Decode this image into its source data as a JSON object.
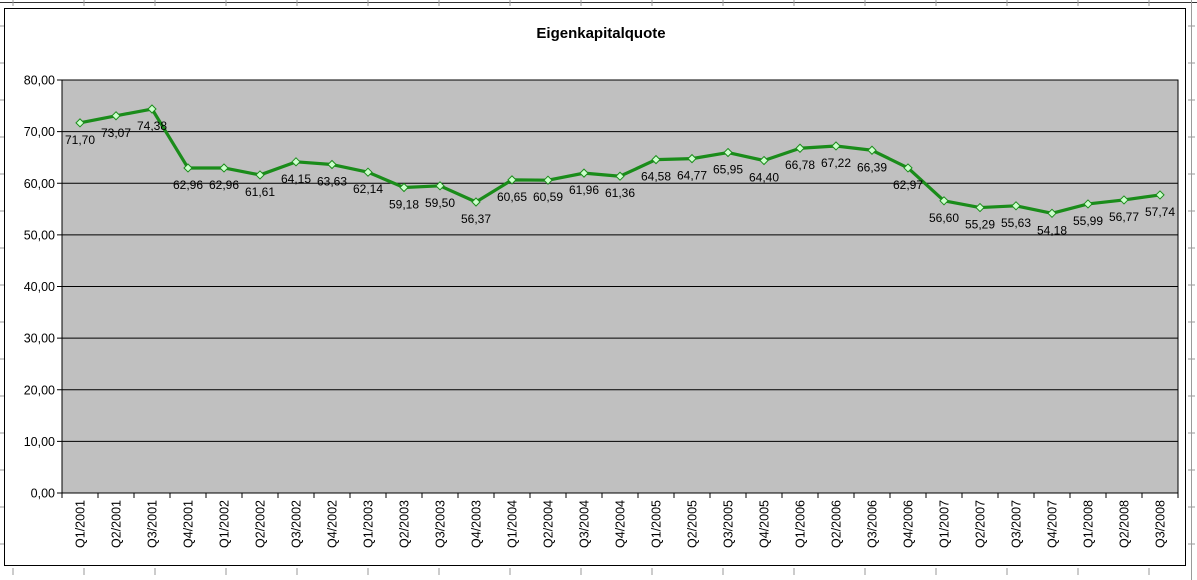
{
  "chart_data": {
    "type": "line",
    "title": "Eigenkapitalquote",
    "categories": [
      "Q1/2001",
      "Q2/2001",
      "Q3/2001",
      "Q4/2001",
      "Q1/2002",
      "Q2/2002",
      "Q3/2002",
      "Q4/2002",
      "Q1/2003",
      "Q2/2003",
      "Q3/2003",
      "Q4/2003",
      "Q1/2004",
      "Q2/2004",
      "Q3/2004",
      "Q4/2004",
      "Q1/2005",
      "Q2/2005",
      "Q3/2005",
      "Q4/2005",
      "Q1/2006",
      "Q2/2006",
      "Q3/2006",
      "Q4/2006",
      "Q1/2007",
      "Q2/2007",
      "Q3/2007",
      "Q4/2007",
      "Q1/2008",
      "Q2/2008",
      "Q3/2008"
    ],
    "values": [
      71.7,
      73.07,
      74.38,
      62.96,
      62.96,
      61.61,
      64.15,
      63.63,
      62.14,
      59.18,
      59.5,
      56.37,
      60.65,
      60.59,
      61.96,
      61.36,
      64.58,
      64.77,
      65.95,
      64.4,
      66.78,
      67.22,
      66.39,
      62.97,
      56.6,
      55.29,
      55.63,
      54.18,
      55.99,
      56.77,
      57.74
    ],
    "data_labels": [
      "71,70",
      "73,07",
      "74,38",
      "62,96",
      "62,96",
      "61,61",
      "64,15",
      "63,63",
      "62,14",
      "59,18",
      "59,50",
      "56,37",
      "60,65",
      "60,59",
      "61,96",
      "61,36",
      "64,58",
      "64,77",
      "65,95",
      "64,40",
      "66,78",
      "67,22",
      "66,39",
      "62,97",
      "56,60",
      "55,29",
      "55,63",
      "54,18",
      "55,99",
      "56,77",
      "57,74"
    ],
    "y_tick_labels": [
      "0,00",
      "10,00",
      "20,00",
      "30,00",
      "40,00",
      "50,00",
      "60,00",
      "70,00",
      "80,00"
    ],
    "ylim": [
      0,
      80
    ],
    "y_step": 10,
    "grid": true,
    "legend": "none",
    "marker": "diamond",
    "colors": {
      "line": "#1A8C1A",
      "marker_fill": "#CCFFCC",
      "marker_stroke": "#1A8C1A",
      "plot_bg": "#C0C0C0",
      "gridline": "#000000",
      "axis": "#000000",
      "text": "#000000",
      "chart_bg": "#FFFFFF",
      "chart_border": "#000000",
      "sheet_line": "#9A9A9A"
    }
  }
}
